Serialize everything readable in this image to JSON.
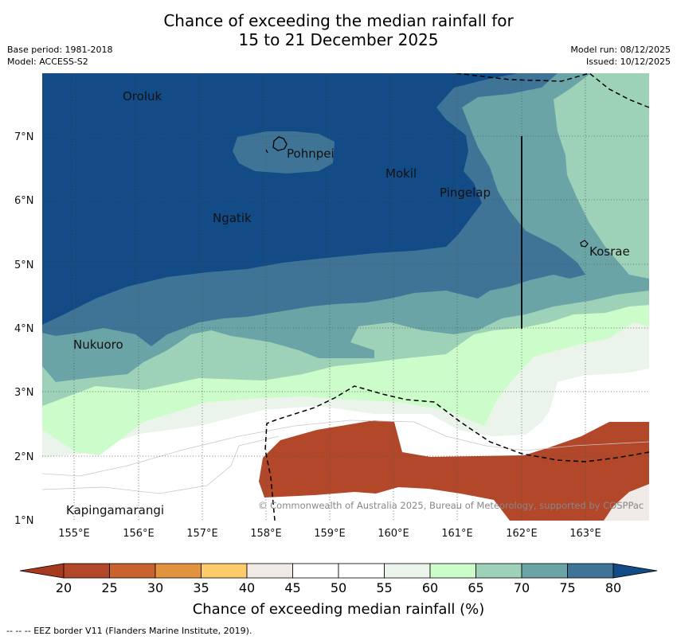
{
  "title": {
    "line1": "Chance of exceeding the median rainfall for",
    "line2": "15 to 21 December 2025"
  },
  "meta": {
    "base_period": "Base period: 1981-2018",
    "model": "Model: ACCESS-S2",
    "model_run": "Model run: 08/12/2025",
    "issued": "Issued: 10/12/2025"
  },
  "map": {
    "places": [
      "Oroluk",
      "Pohnpei",
      "Mokil",
      "Pingelap",
      "Ngatik",
      "Kosrae",
      "Nukuoro",
      "Kapingamarangi"
    ],
    "lat_ticks": [
      "7°N",
      "6°N",
      "5°N",
      "4°N",
      "3°N",
      "2°N",
      "1°N"
    ],
    "lon_ticks": [
      "155°E",
      "156°E",
      "157°E",
      "158°E",
      "159°E",
      "160°E",
      "161°E",
      "162°E",
      "163°E"
    ],
    "copyright": "© Commonwealth of Australia 2025, Bureau of Meteorology, supported by COSPPac"
  },
  "colorbar": {
    "labels": [
      "20",
      "25",
      "30",
      "35",
      "40",
      "45",
      "50",
      "55",
      "60",
      "65",
      "70",
      "75",
      "80"
    ],
    "colors": [
      "#a63a1e",
      "#b2472a",
      "#c8622e",
      "#e1933f",
      "#fdcb69",
      "#efeae6",
      "#ffffff",
      "#ffffff",
      "#eaf4ea",
      "#cbfcc9",
      "#9dd2b9",
      "#6aa4a6",
      "#3f7497",
      "#124b86"
    ],
    "title": "Chance of exceeding median rainfall (%)"
  },
  "footer": "--  --  -- EEZ border V11 (Flanders Marine Institute, 2019)."
}
